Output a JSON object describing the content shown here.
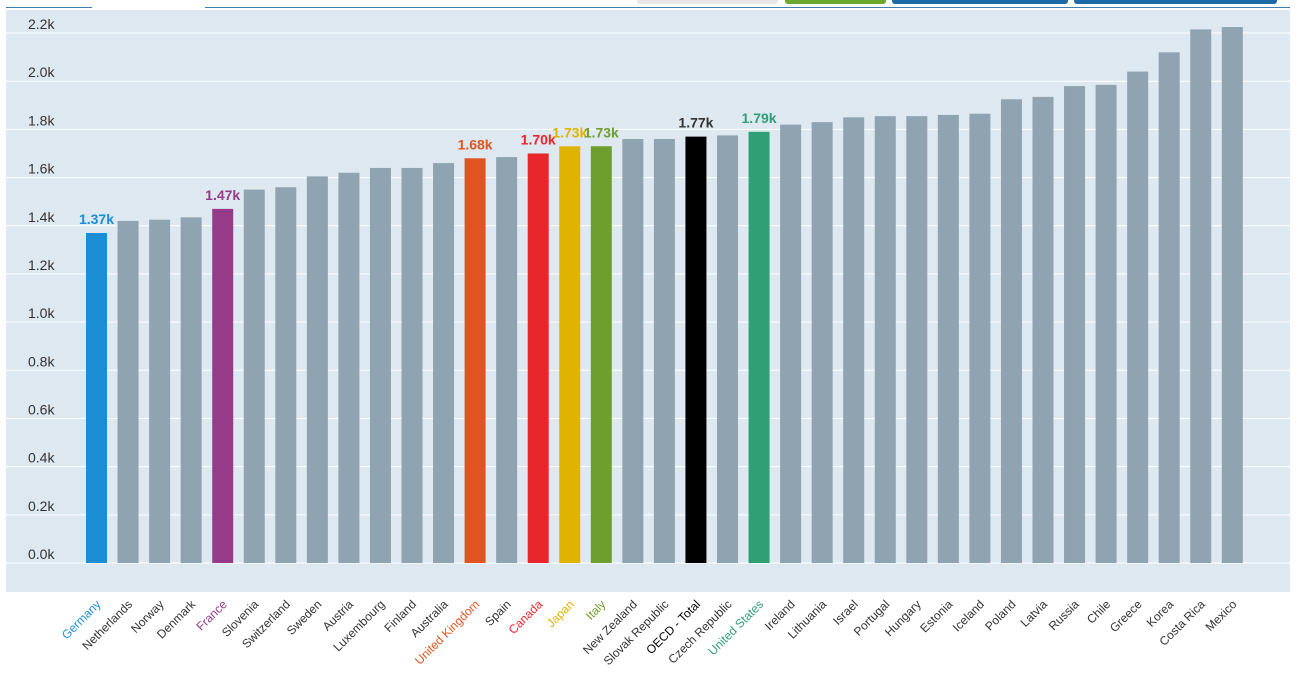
{
  "toolbar": {
    "buttons": [
      {
        "name": "toolbar-button-1",
        "color": "#e6e6e6"
      },
      {
        "name": "toolbar-button-2",
        "color": "#6aa72c"
      },
      {
        "name": "toolbar-button-3",
        "color": "#1d6aa8"
      },
      {
        "name": "toolbar-button-4",
        "color": "#1d6aa8"
      }
    ]
  },
  "chart_data": {
    "type": "bar",
    "ylim": [
      0,
      2250
    ],
    "yticks": [
      0,
      200,
      400,
      600,
      800,
      1000,
      1200,
      1400,
      1600,
      1800,
      2000,
      2200
    ],
    "ytick_labels": [
      "0.0k",
      "0.2k",
      "0.4k",
      "0.6k",
      "0.8k",
      "1.0k",
      "1.2k",
      "1.4k",
      "1.6k",
      "1.8k",
      "2.0k",
      "2.2k"
    ],
    "grid": true,
    "default_color": "#8fa3b0",
    "plot_background": "#dde8f0",
    "categories": [
      "Germany",
      "Netherlands",
      "Norway",
      "Denmark",
      "France",
      "Slovenia",
      "Switzerland",
      "Sweden",
      "Austria",
      "Luxembourg",
      "Finland",
      "Australia",
      "United Kingdom",
      "Spain",
      "Canada",
      "Japan",
      "Italy",
      "New Zealand",
      "Slovak Republic",
      "OECD - Total",
      "Czech Republic",
      "United States",
      "Ireland",
      "Lithuania",
      "Israel",
      "Portugal",
      "Hungary",
      "Estonia",
      "Iceland",
      "Poland",
      "Latvia",
      "Russia",
      "Chile",
      "Greece",
      "Korea",
      "Costa Rica",
      "Mexico"
    ],
    "values": [
      1370,
      1420,
      1425,
      1435,
      1470,
      1550,
      1560,
      1605,
      1620,
      1640,
      1640,
      1660,
      1680,
      1685,
      1700,
      1730,
      1730,
      1760,
      1760,
      1770,
      1775,
      1790,
      1820,
      1830,
      1850,
      1855,
      1855,
      1860,
      1865,
      1925,
      1935,
      1980,
      1985,
      2040,
      2120,
      2215,
      2225
    ],
    "highlights": [
      {
        "category": "Germany",
        "color": "#1a8dd4",
        "label": "1.37k"
      },
      {
        "category": "France",
        "color": "#963a8a",
        "label": "1.47k"
      },
      {
        "category": "United Kingdom",
        "color": "#e05421",
        "label": "1.68k"
      },
      {
        "category": "Canada",
        "color": "#e8262c",
        "label": "1.70k"
      },
      {
        "category": "Japan",
        "color": "#e0b300",
        "label": "1.73k"
      },
      {
        "category": "Italy",
        "color": "#6e9e2e",
        "label": "1.73k"
      },
      {
        "category": "OECD - Total",
        "color": "#000000",
        "label": "1.77k"
      },
      {
        "category": "United States",
        "color": "#2f9f75",
        "label": "1.79k"
      }
    ]
  }
}
